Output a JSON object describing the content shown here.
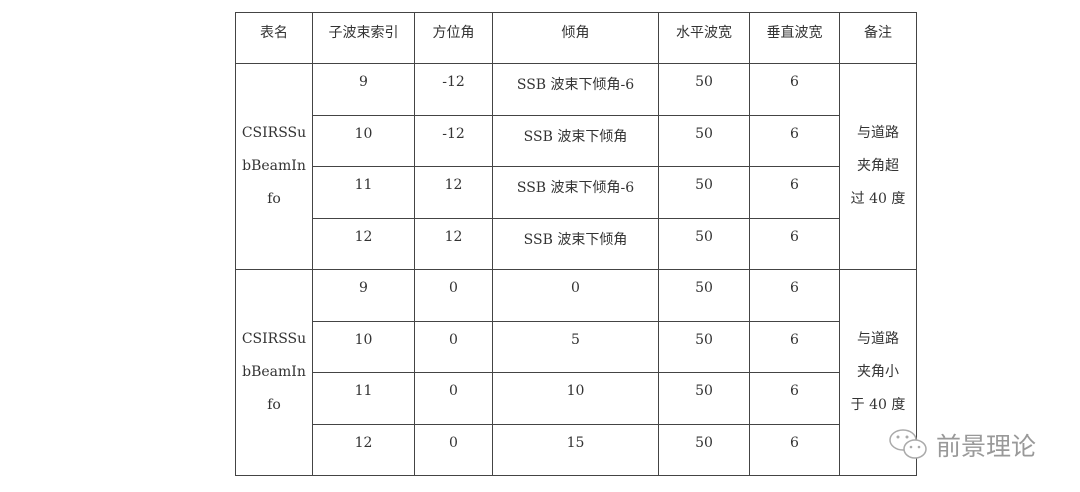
{
  "table": {
    "headers": [
      "表名",
      "子波束索引",
      "方位角",
      "倾角",
      "水平波宽",
      "垂直波宽",
      "备注"
    ],
    "groups": [
      {
        "name_lines": [
          "CSIRSSu",
          "bBeamIn",
          "fo"
        ],
        "note_lines": [
          "与道路",
          "夹角超",
          "过 40 度"
        ],
        "rows": [
          {
            "index": "9",
            "azimuth": "-12",
            "tilt": "SSB 波束下倾角-6",
            "h_width": "50",
            "v_width": "6"
          },
          {
            "index": "10",
            "azimuth": "-12",
            "tilt": "SSB 波束下倾角",
            "h_width": "50",
            "v_width": "6"
          },
          {
            "index": "11",
            "azimuth": "12",
            "tilt": "SSB 波束下倾角-6",
            "h_width": "50",
            "v_width": "6"
          },
          {
            "index": "12",
            "azimuth": "12",
            "tilt": "SSB 波束下倾角",
            "h_width": "50",
            "v_width": "6"
          }
        ]
      },
      {
        "name_lines": [
          "CSIRSSu",
          "bBeamIn",
          "fo"
        ],
        "note_lines": [
          "与道路",
          "夹角小",
          "于 40 度"
        ],
        "rows": [
          {
            "index": "9",
            "azimuth": "0",
            "tilt": "0",
            "h_width": "50",
            "v_width": "6"
          },
          {
            "index": "10",
            "azimuth": "0",
            "tilt": "5",
            "h_width": "50",
            "v_width": "6"
          },
          {
            "index": "11",
            "azimuth": "0",
            "tilt": "10",
            "h_width": "50",
            "v_width": "6"
          },
          {
            "index": "12",
            "azimuth": "0",
            "tilt": "15",
            "h_width": "50",
            "v_width": "6"
          }
        ]
      }
    ]
  },
  "watermark": {
    "text": "前景理论",
    "icon": "wechat-icon"
  }
}
